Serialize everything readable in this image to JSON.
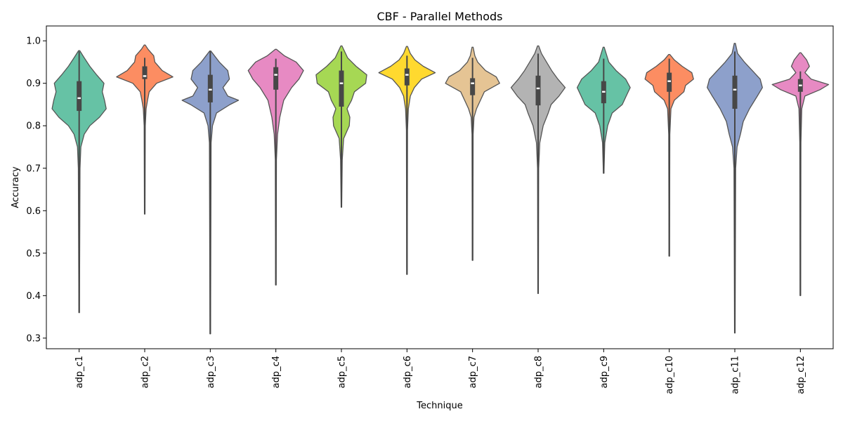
{
  "chart_data": {
    "type": "violin",
    "title": "CBF - Parallel Methods",
    "xlabel": "Technique",
    "ylabel": "Accuracy",
    "ylim": [
      0.275,
      1.035
    ],
    "yticks": [
      0.3,
      0.4,
      0.5,
      0.6,
      0.7,
      0.8,
      0.9,
      1.0
    ],
    "ytick_labels": [
      "0.3",
      "0.4",
      "0.5",
      "0.6",
      "0.7",
      "0.8",
      "0.9",
      "1.0"
    ],
    "grid": false,
    "legend": "none",
    "palette": [
      "#66c2a5",
      "#fc8d62",
      "#8da0cb",
      "#e78ac3",
      "#a6d854",
      "#ffd92f",
      "#e5c494",
      "#b3b3b3",
      "#66c2a5",
      "#fc8d62",
      "#8da0cb",
      "#e78ac3"
    ],
    "categories": [
      "adp_c1",
      "adp_c2",
      "adp_c3",
      "adp_c4",
      "adp_c5",
      "adp_c6",
      "adp_c7",
      "adp_c8",
      "adp_c9",
      "adp_c10",
      "adp_c11",
      "adp_c12"
    ],
    "series": [
      {
        "category": "adp_c1",
        "min": 0.36,
        "max": 0.977,
        "q1": 0.835,
        "median": 0.865,
        "q3": 0.905,
        "whisker_low": 0.36,
        "whisker_high": 0.975,
        "density": [
          [
            0.36,
            0.01
          ],
          [
            0.7,
            0.03
          ],
          [
            0.75,
            0.06
          ],
          [
            0.78,
            0.18
          ],
          [
            0.8,
            0.38
          ],
          [
            0.82,
            0.72
          ],
          [
            0.84,
            0.96
          ],
          [
            0.86,
            0.9
          ],
          [
            0.88,
            0.82
          ],
          [
            0.9,
            0.88
          ],
          [
            0.92,
            0.62
          ],
          [
            0.94,
            0.38
          ],
          [
            0.96,
            0.18
          ],
          [
            0.977,
            0.02
          ]
        ]
      },
      {
        "category": "adp_c2",
        "min": 0.592,
        "max": 0.99,
        "q1": 0.91,
        "median": 0.917,
        "q3": 0.94,
        "whisker_low": 0.592,
        "whisker_high": 0.96,
        "density": [
          [
            0.592,
            0.01
          ],
          [
            0.8,
            0.02
          ],
          [
            0.84,
            0.05
          ],
          [
            0.86,
            0.1
          ],
          [
            0.88,
            0.16
          ],
          [
            0.9,
            0.42
          ],
          [
            0.915,
            1.0
          ],
          [
            0.93,
            0.62
          ],
          [
            0.95,
            0.36
          ],
          [
            0.965,
            0.32
          ],
          [
            0.98,
            0.12
          ],
          [
            0.99,
            0.02
          ]
        ]
      },
      {
        "category": "adp_c3",
        "min": 0.31,
        "max": 0.976,
        "q1": 0.855,
        "median": 0.885,
        "q3": 0.92,
        "whisker_low": 0.31,
        "whisker_high": 0.975,
        "density": [
          [
            0.31,
            0.01
          ],
          [
            0.76,
            0.03
          ],
          [
            0.8,
            0.08
          ],
          [
            0.83,
            0.22
          ],
          [
            0.85,
            0.7
          ],
          [
            0.86,
            1.0
          ],
          [
            0.87,
            0.62
          ],
          [
            0.89,
            0.45
          ],
          [
            0.91,
            0.68
          ],
          [
            0.93,
            0.62
          ],
          [
            0.95,
            0.32
          ],
          [
            0.976,
            0.02
          ]
        ]
      },
      {
        "category": "adp_c4",
        "min": 0.425,
        "max": 0.98,
        "q1": 0.885,
        "median": 0.92,
        "q3": 0.938,
        "whisker_low": 0.425,
        "whisker_high": 0.958,
        "density": [
          [
            0.425,
            0.01
          ],
          [
            0.72,
            0.02
          ],
          [
            0.78,
            0.06
          ],
          [
            0.82,
            0.14
          ],
          [
            0.86,
            0.28
          ],
          [
            0.89,
            0.56
          ],
          [
            0.91,
            0.82
          ],
          [
            0.93,
            0.98
          ],
          [
            0.95,
            0.72
          ],
          [
            0.965,
            0.3
          ],
          [
            0.98,
            0.02
          ]
        ]
      },
      {
        "category": "adp_c5",
        "min": 0.608,
        "max": 0.988,
        "q1": 0.845,
        "median": 0.9,
        "q3": 0.93,
        "whisker_low": 0.608,
        "whisker_high": 0.975,
        "density": [
          [
            0.608,
            0.01
          ],
          [
            0.72,
            0.03
          ],
          [
            0.77,
            0.08
          ],
          [
            0.8,
            0.28
          ],
          [
            0.82,
            0.3
          ],
          [
            0.84,
            0.2
          ],
          [
            0.86,
            0.36
          ],
          [
            0.88,
            0.46
          ],
          [
            0.9,
            0.86
          ],
          [
            0.92,
            0.9
          ],
          [
            0.94,
            0.52
          ],
          [
            0.96,
            0.22
          ],
          [
            0.988,
            0.02
          ]
        ]
      },
      {
        "category": "adp_c6",
        "min": 0.45,
        "max": 0.987,
        "q1": 0.895,
        "median": 0.92,
        "q3": 0.935,
        "whisker_low": 0.45,
        "whisker_high": 0.965,
        "density": [
          [
            0.45,
            0.01
          ],
          [
            0.79,
            0.02
          ],
          [
            0.84,
            0.05
          ],
          [
            0.87,
            0.12
          ],
          [
            0.89,
            0.26
          ],
          [
            0.91,
            0.52
          ],
          [
            0.925,
            1.0
          ],
          [
            0.94,
            0.58
          ],
          [
            0.955,
            0.28
          ],
          [
            0.97,
            0.12
          ],
          [
            0.987,
            0.02
          ]
        ]
      },
      {
        "category": "adp_c7",
        "min": 0.483,
        "max": 0.985,
        "q1": 0.872,
        "median": 0.9,
        "q3": 0.912,
        "whisker_low": 0.483,
        "whisker_high": 0.96,
        "density": [
          [
            0.483,
            0.01
          ],
          [
            0.78,
            0.02
          ],
          [
            0.82,
            0.05
          ],
          [
            0.84,
            0.14
          ],
          [
            0.86,
            0.28
          ],
          [
            0.88,
            0.42
          ],
          [
            0.9,
            0.96
          ],
          [
            0.915,
            0.84
          ],
          [
            0.93,
            0.46
          ],
          [
            0.95,
            0.18
          ],
          [
            0.965,
            0.08
          ],
          [
            0.985,
            0.02
          ]
        ]
      },
      {
        "category": "adp_c8",
        "min": 0.405,
        "max": 0.988,
        "q1": 0.848,
        "median": 0.888,
        "q3": 0.918,
        "whisker_low": 0.405,
        "whisker_high": 0.97,
        "density": [
          [
            0.405,
            0.01
          ],
          [
            0.7,
            0.02
          ],
          [
            0.76,
            0.06
          ],
          [
            0.8,
            0.18
          ],
          [
            0.83,
            0.36
          ],
          [
            0.85,
            0.46
          ],
          [
            0.87,
            0.74
          ],
          [
            0.89,
            0.96
          ],
          [
            0.91,
            0.7
          ],
          [
            0.93,
            0.48
          ],
          [
            0.95,
            0.3
          ],
          [
            0.97,
            0.12
          ],
          [
            0.988,
            0.02
          ]
        ]
      },
      {
        "category": "adp_c9",
        "min": 0.688,
        "max": 0.985,
        "q1": 0.853,
        "median": 0.88,
        "q3": 0.905,
        "whisker_low": 0.688,
        "whisker_high": 0.958,
        "density": [
          [
            0.688,
            0.01
          ],
          [
            0.76,
            0.04
          ],
          [
            0.8,
            0.14
          ],
          [
            0.83,
            0.3
          ],
          [
            0.85,
            0.66
          ],
          [
            0.87,
            0.8
          ],
          [
            0.89,
            0.94
          ],
          [
            0.91,
            0.78
          ],
          [
            0.93,
            0.44
          ],
          [
            0.95,
            0.18
          ],
          [
            0.985,
            0.02
          ]
        ]
      },
      {
        "category": "adp_c10",
        "min": 0.493,
        "max": 0.968,
        "q1": 0.88,
        "median": 0.905,
        "q3": 0.925,
        "whisker_low": 0.493,
        "whisker_high": 0.958,
        "density": [
          [
            0.493,
            0.01
          ],
          [
            0.78,
            0.02
          ],
          [
            0.84,
            0.06
          ],
          [
            0.86,
            0.18
          ],
          [
            0.88,
            0.52
          ],
          [
            0.895,
            0.58
          ],
          [
            0.91,
            0.86
          ],
          [
            0.925,
            0.8
          ],
          [
            0.94,
            0.46
          ],
          [
            0.955,
            0.18
          ],
          [
            0.968,
            0.02
          ]
        ]
      },
      {
        "category": "adp_c11",
        "min": 0.312,
        "max": 0.994,
        "q1": 0.84,
        "median": 0.885,
        "q3": 0.918,
        "whisker_low": 0.312,
        "whisker_high": 0.975,
        "density": [
          [
            0.312,
            0.01
          ],
          [
            0.7,
            0.03
          ],
          [
            0.75,
            0.08
          ],
          [
            0.78,
            0.2
          ],
          [
            0.81,
            0.3
          ],
          [
            0.84,
            0.52
          ],
          [
            0.87,
            0.8
          ],
          [
            0.89,
            0.98
          ],
          [
            0.91,
            0.9
          ],
          [
            0.93,
            0.62
          ],
          [
            0.95,
            0.34
          ],
          [
            0.97,
            0.1
          ],
          [
            0.994,
            0.02
          ]
        ]
      },
      {
        "category": "adp_c12",
        "min": 0.4,
        "max": 0.972,
        "q1": 0.88,
        "median": 0.895,
        "q3": 0.91,
        "whisker_low": 0.4,
        "whisker_high": 0.928,
        "density": [
          [
            0.4,
            0.01
          ],
          [
            0.76,
            0.02
          ],
          [
            0.84,
            0.05
          ],
          [
            0.87,
            0.16
          ],
          [
            0.885,
            0.7
          ],
          [
            0.897,
            1.0
          ],
          [
            0.91,
            0.38
          ],
          [
            0.925,
            0.16
          ],
          [
            0.94,
            0.32
          ],
          [
            0.955,
            0.22
          ],
          [
            0.972,
            0.02
          ]
        ]
      }
    ]
  }
}
